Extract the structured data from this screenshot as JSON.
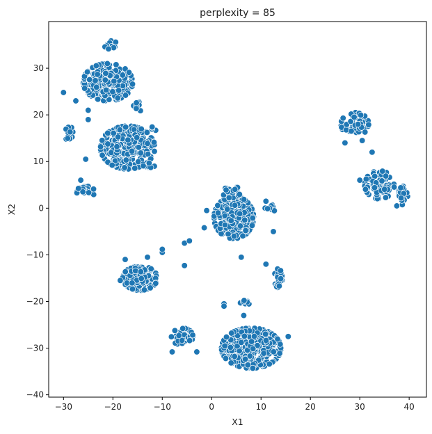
{
  "chart_data": {
    "type": "scatter",
    "title": "perplexity = 85",
    "xlabel": "X1",
    "ylabel": "X2",
    "xlim": [
      -33,
      43.5
    ],
    "ylim": [
      -40.5,
      40
    ],
    "xticks": [
      -30,
      -20,
      -10,
      0,
      10,
      20,
      30,
      40
    ],
    "yticks": [
      -40,
      -30,
      -20,
      -10,
      0,
      10,
      20,
      30
    ],
    "grid": false,
    "marker_color": "#1f77b4",
    "marker_edge_color": "#ffffff",
    "clusters": [
      {
        "cx": -21,
        "cy": 27,
        "rx": 5,
        "ry": 4,
        "n": 230
      },
      {
        "cx": -20.5,
        "cy": 35,
        "rx": 1.4,
        "ry": 0.9,
        "n": 14
      },
      {
        "cx": -17,
        "cy": 13,
        "rx": 5.5,
        "ry": 4.6,
        "n": 320
      },
      {
        "cx": -29,
        "cy": 16,
        "rx": 0.9,
        "ry": 1.8,
        "n": 16
      },
      {
        "cx": -25.5,
        "cy": 3.5,
        "rx": 1.8,
        "ry": 1.3,
        "n": 24
      },
      {
        "cx": -15,
        "cy": 22,
        "rx": 1.6,
        "ry": 1.2,
        "n": 10
      },
      {
        "cx": -12,
        "cy": 17,
        "rx": 0.7,
        "ry": 1.3,
        "n": 4
      },
      {
        "cx": -13,
        "cy": 9,
        "rx": 1.5,
        "ry": 0.9,
        "n": 10
      },
      {
        "cx": 4.5,
        "cy": -2,
        "rx": 4,
        "ry": 4.5,
        "n": 280
      },
      {
        "cx": 4,
        "cy": 3.5,
        "rx": 1.8,
        "ry": 1.3,
        "n": 24
      },
      {
        "cx": 12,
        "cy": 0,
        "rx": 1.2,
        "ry": 0.9,
        "n": 8
      },
      {
        "cx": -14.5,
        "cy": -15,
        "rx": 3.5,
        "ry": 2.6,
        "n": 150
      },
      {
        "cx": 13.5,
        "cy": -15,
        "rx": 0.8,
        "ry": 2,
        "n": 22
      },
      {
        "cx": 8,
        "cy": -30,
        "rx": 6,
        "ry": 4.3,
        "n": 380
      },
      {
        "cx": -6,
        "cy": -27.5,
        "rx": 2.2,
        "ry": 1.8,
        "n": 45
      },
      {
        "cx": 29,
        "cy": 18,
        "rx": 2.8,
        "ry": 2.5,
        "n": 60
      },
      {
        "cx": 34,
        "cy": 5,
        "rx": 3,
        "ry": 3,
        "n": 80
      },
      {
        "cx": 38.8,
        "cy": 3,
        "rx": 0.9,
        "ry": 2.3,
        "n": 22
      },
      {
        "cx": 6.5,
        "cy": -20.2,
        "rx": 1.5,
        "ry": 0.6,
        "n": 8
      }
    ],
    "outliers": [
      [
        -30,
        24.8
      ],
      [
        -27.5,
        23
      ],
      [
        -25,
        21
      ],
      [
        -25,
        19
      ],
      [
        -26.5,
        6
      ],
      [
        -25.5,
        10.5
      ],
      [
        -17.5,
        -11
      ],
      [
        -18.5,
        -15.5
      ],
      [
        -13,
        -10.5
      ],
      [
        -10,
        -9.5
      ],
      [
        -10,
        -8.8
      ],
      [
        -5.5,
        -12.3
      ],
      [
        -5.5,
        -7.5
      ],
      [
        -4.5,
        -7
      ],
      [
        -1,
        -0.5
      ],
      [
        2.5,
        -20.5
      ],
      [
        6.5,
        -23
      ],
      [
        6,
        -10.5
      ],
      [
        11,
        -12
      ],
      [
        12.5,
        -5
      ],
      [
        -3,
        -30.8
      ],
      [
        -8,
        -30.8
      ],
      [
        -1.5,
        -4.2
      ],
      [
        15.5,
        -27.5
      ],
      [
        27,
        14
      ],
      [
        32.5,
        12
      ],
      [
        30.5,
        14.5
      ],
      [
        37.5,
        0.5
      ],
      [
        30,
        6
      ],
      [
        11,
        1.5
      ],
      [
        2.5,
        -21
      ]
    ]
  }
}
